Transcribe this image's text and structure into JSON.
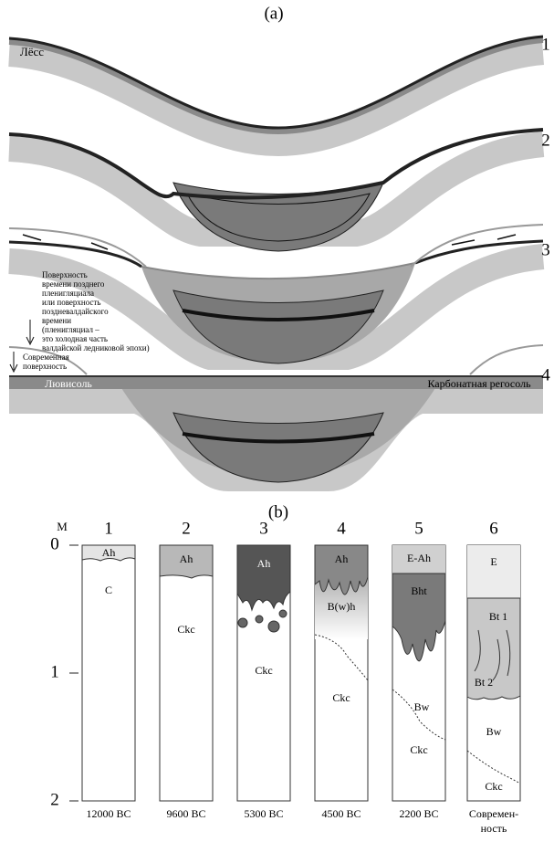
{
  "panel_a": {
    "label": "(a)",
    "rows": [
      "1",
      "2",
      "3",
      "4"
    ],
    "loess": "Лёсс",
    "annotation": [
      "Поверхность",
      "времени позднего",
      "пленигляциала",
      "или поверхность",
      "поздневалдайского",
      "времени",
      "(пленигляциал –",
      "это холодная часть",
      "валдайской ледниковой эпохи)"
    ],
    "modern_surface": [
      "Современная",
      "поверхность"
    ],
    "luvisol": "Лювисоль",
    "regosol": "Карбонатная регосоль"
  },
  "panel_b": {
    "label": "(b)",
    "axis_unit": "М",
    "ticks": [
      "0",
      "1",
      "2"
    ],
    "columns": [
      {
        "number": "1",
        "horizons": [
          "Ah",
          "C"
        ],
        "date": [
          "12000 BC"
        ]
      },
      {
        "number": "2",
        "horizons": [
          "Ah",
          "Ckc"
        ],
        "date": [
          "9600 BC"
        ]
      },
      {
        "number": "3",
        "horizons": [
          "Ah",
          "Ckc"
        ],
        "date": [
          "5300 BC"
        ]
      },
      {
        "number": "4",
        "horizons": [
          "Ah",
          "B(w)h",
          "Ckc"
        ],
        "date": [
          "4500 BC"
        ]
      },
      {
        "number": "5",
        "horizons": [
          "E-Ah",
          "Bht",
          "Bw",
          "Ckc"
        ],
        "date": [
          "2200 BC"
        ]
      },
      {
        "number": "6",
        "horizons": [
          "E",
          "Bt 1",
          "Bt 2",
          "Bw",
          "Ckc"
        ],
        "date": [
          "Современ-",
          "ность"
        ]
      }
    ]
  }
}
